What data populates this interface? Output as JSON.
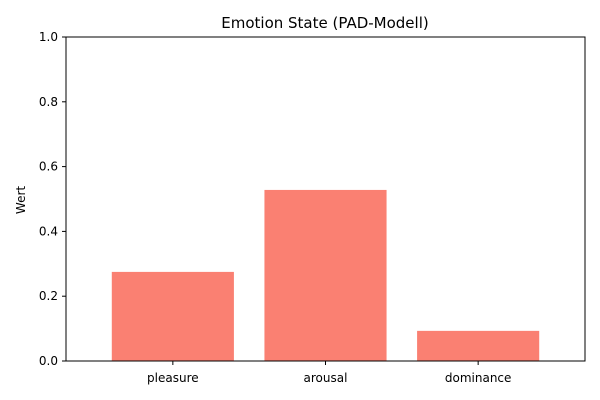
{
  "chart_data": {
    "type": "bar",
    "title": "Emotion State (PAD-Modell)",
    "xlabel": "",
    "ylabel": "Wert",
    "categories": [
      "pleasure",
      "arousal",
      "dominance"
    ],
    "values": [
      0.275,
      0.528,
      0.093
    ],
    "ylim": [
      0,
      1
    ],
    "yticks": [
      "0.0",
      "0.2",
      "0.4",
      "0.6",
      "0.8",
      "1.0"
    ],
    "bar_color": "#fa8072",
    "grid": false,
    "legend": "none"
  }
}
